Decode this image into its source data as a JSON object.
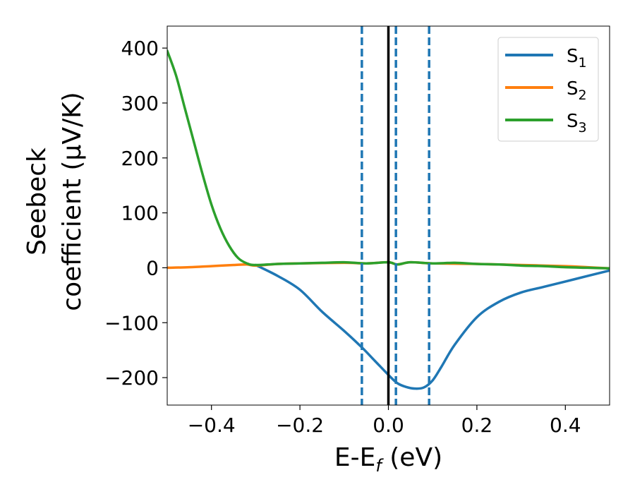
{
  "chart_data": {
    "type": "line",
    "xlabel": {
      "main": "E-E",
      "sub": "f",
      "unit": " (eV)"
    },
    "ylabel": {
      "line1": "Seebeck",
      "line2": "coefficient  (μV/K)"
    },
    "xlim": [
      -0.5,
      0.5
    ],
    "ylim": [
      -250,
      440
    ],
    "x_ticks": [
      -0.4,
      -0.2,
      0.0,
      0.2,
      0.4
    ],
    "x_tick_labels": [
      "−0.4",
      "−0.2",
      "0.0",
      "0.2",
      "0.4"
    ],
    "y_ticks": [
      -200,
      -100,
      0,
      100,
      200,
      300,
      400
    ],
    "y_tick_labels": [
      "−200",
      "−100",
      "0",
      "100",
      "200",
      "300",
      "400"
    ],
    "grid": false,
    "legend_position": "top-right",
    "series": [
      {
        "name": "S",
        "sub": "1",
        "color": "#1f77b4",
        "x": [
          -0.3,
          -0.25,
          -0.2,
          -0.15,
          -0.1,
          -0.06,
          -0.03,
          0.0,
          0.02,
          0.04,
          0.06,
          0.08,
          0.1,
          0.12,
          0.15,
          0.2,
          0.25,
          0.3,
          0.35,
          0.4,
          0.45,
          0.5
        ],
        "y": [
          5,
          -15,
          -40,
          -80,
          -115,
          -145,
          -170,
          -195,
          -210,
          -217,
          -220,
          -218,
          -205,
          -180,
          -140,
          -90,
          -62,
          -45,
          -35,
          -25,
          -15,
          -5
        ]
      },
      {
        "name": "S",
        "sub": "2",
        "color": "#ff7f0e",
        "x": [
          -0.5,
          -0.45,
          -0.4,
          -0.35,
          -0.32,
          -0.3,
          -0.25,
          -0.2,
          -0.1,
          -0.05,
          0.0,
          0.02,
          0.05,
          0.1,
          0.2,
          0.3,
          0.4,
          0.45,
          0.5
        ],
        "y": [
          0,
          1,
          3,
          5,
          6,
          4,
          7,
          8,
          9,
          8,
          10,
          6,
          10,
          8,
          7,
          5,
          3,
          1,
          -1
        ]
      },
      {
        "name": "S",
        "sub": "3",
        "color": "#2ca02c",
        "x": [
          -0.5,
          -0.48,
          -0.46,
          -0.44,
          -0.42,
          -0.4,
          -0.38,
          -0.36,
          -0.34,
          -0.32,
          -0.3,
          -0.25,
          -0.2,
          -0.15,
          -0.1,
          -0.05,
          0.0,
          0.02,
          0.05,
          0.1,
          0.15,
          0.2,
          0.25,
          0.3,
          0.35,
          0.4,
          0.45,
          0.5
        ],
        "y": [
          395,
          350,
          290,
          230,
          170,
          115,
          72,
          40,
          18,
          8,
          5,
          7,
          8,
          9,
          10,
          8,
          10,
          6,
          10,
          8,
          9,
          7,
          6,
          4,
          3,
          1,
          0,
          -1
        ]
      }
    ],
    "vertical_lines": [
      {
        "x": 0.0,
        "style": "solid",
        "color": "#000000"
      },
      {
        "x": -0.06,
        "style": "dashed",
        "color": "#1f77b4"
      },
      {
        "x": 0.017,
        "style": "dashed",
        "color": "#1f77b4"
      },
      {
        "x": 0.092,
        "style": "dashed",
        "color": "#1f77b4"
      }
    ]
  }
}
